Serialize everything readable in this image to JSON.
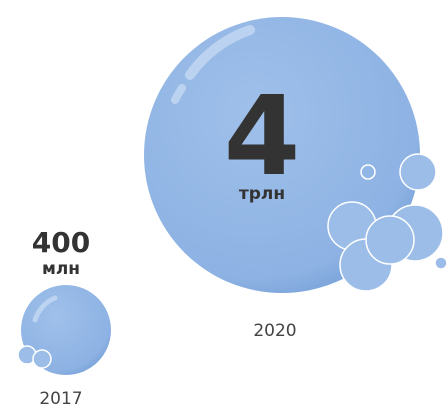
{
  "items": [
    {
      "number": 400,
      "unit": "млн",
      "year": "2017"
    },
    {
      "number": 4,
      "unit": "трлн",
      "year": "2020"
    }
  ]
}
